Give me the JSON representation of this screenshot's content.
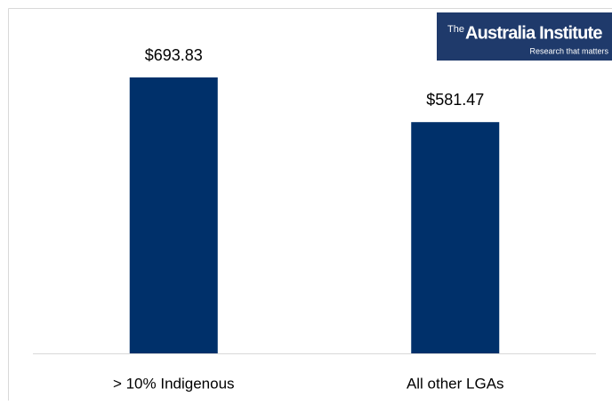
{
  "chart_data": {
    "type": "bar",
    "categories": [
      "> 10% Indigenous",
      "All other LGAs"
    ],
    "values": [
      693.83,
      581.47
    ],
    "value_labels": [
      "$693.83",
      "$581.47"
    ],
    "color": "#00306a"
  },
  "logo": {
    "prefix": "The",
    "name": "Australia Institute",
    "tagline": "Research that matters"
  }
}
